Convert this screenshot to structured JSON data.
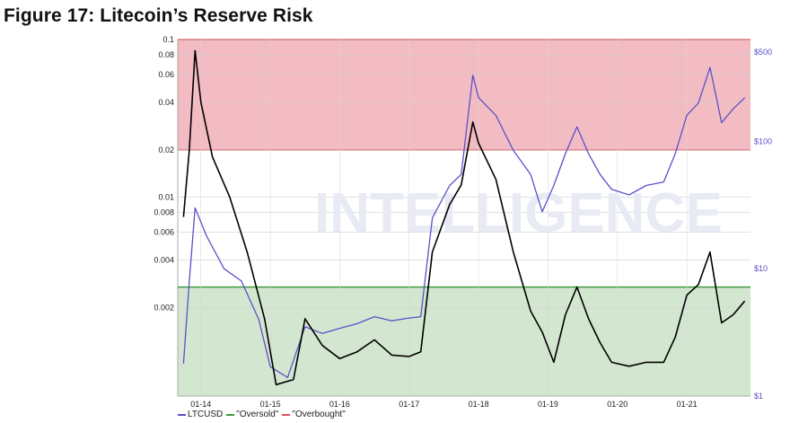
{
  "figure_title": "Figure 17: Litecoin’s Reserve Risk",
  "watermark": "INTELLIGENCE",
  "colors": {
    "ltcusd": "#5b50c8",
    "reserve_risk": "#000000",
    "oversold": "#3e9b3e",
    "overbought": "#e0505c",
    "oversold_fill": "#d3e7d0",
    "overbought_fill": "#f3bcc2"
  },
  "chart_data": {
    "type": "line",
    "title": "",
    "left_axis": {
      "scale": "log",
      "range": [
        0.00055,
        0.1
      ],
      "ticks": [
        0.1,
        0.08,
        0.06,
        0.04,
        0.02,
        0.01,
        0.008,
        0.006,
        0.004,
        0.002
      ],
      "tick_labels": [
        "0.1",
        "0.08",
        "0.06",
        "0.04",
        "0.02",
        "0.01",
        "0.008",
        "0.006",
        "0.004",
        "0.002"
      ]
    },
    "right_axis": {
      "scale": "log",
      "range": [
        1,
        630
      ],
      "ticks": [
        500,
        100,
        10,
        1
      ],
      "tick_labels": [
        "$500",
        "$100",
        "$10",
        "$1"
      ]
    },
    "x_axis": {
      "range": [
        "2013-09",
        "2021-12"
      ],
      "ticks": [
        "2014-01",
        "2015-01",
        "2016-01",
        "2017-01",
        "2018-01",
        "2019-01",
        "2020-01",
        "2021-01"
      ],
      "tick_labels": [
        "01-14",
        "01-15",
        "01-16",
        "01-17",
        "01-18",
        "01-19",
        "01-20",
        "01-21"
      ]
    },
    "bands": {
      "overbought": {
        "from": 0.02,
        "to": 0.1
      },
      "oversold": {
        "from": 0.00055,
        "to": 0.0027
      }
    },
    "legend": [
      "LTCUSD",
      "\"Oversold\"",
      "\"Overbought\""
    ],
    "series": [
      {
        "name": "LTCUSD",
        "axis": "right",
        "points": [
          [
            "2013-10",
            1.8
          ],
          [
            "2013-11",
            8
          ],
          [
            "2013-12",
            30
          ],
          [
            "2014-02",
            18
          ],
          [
            "2014-05",
            10
          ],
          [
            "2014-08",
            8
          ],
          [
            "2014-11",
            4
          ],
          [
            "2015-01",
            1.7
          ],
          [
            "2015-04",
            1.4
          ],
          [
            "2015-07",
            3.5
          ],
          [
            "2015-10",
            3.1
          ],
          [
            "2016-01",
            3.4
          ],
          [
            "2016-04",
            3.7
          ],
          [
            "2016-07",
            4.2
          ],
          [
            "2016-10",
            3.9
          ],
          [
            "2017-01",
            4.1
          ],
          [
            "2017-03",
            4.2
          ],
          [
            "2017-05",
            25
          ],
          [
            "2017-08",
            45
          ],
          [
            "2017-10",
            55
          ],
          [
            "2017-12",
            330
          ],
          [
            "2018-01",
            220
          ],
          [
            "2018-04",
            160
          ],
          [
            "2018-07",
            85
          ],
          [
            "2018-10",
            55
          ],
          [
            "2018-12",
            28
          ],
          [
            "2019-02",
            45
          ],
          [
            "2019-04",
            80
          ],
          [
            "2019-06",
            130
          ],
          [
            "2019-08",
            80
          ],
          [
            "2019-10",
            55
          ],
          [
            "2019-12",
            42
          ],
          [
            "2020-03",
            38
          ],
          [
            "2020-06",
            45
          ],
          [
            "2020-09",
            48
          ],
          [
            "2020-11",
            80
          ],
          [
            "2021-01",
            160
          ],
          [
            "2021-03",
            200
          ],
          [
            "2021-05",
            380
          ],
          [
            "2021-07",
            140
          ],
          [
            "2021-09",
            180
          ],
          [
            "2021-11",
            220
          ]
        ]
      },
      {
        "name": "Reserve Risk",
        "points": [
          [
            "2013-10",
            0.0075
          ],
          [
            "2013-11",
            0.02
          ],
          [
            "2013-12",
            0.085
          ],
          [
            "2014-01",
            0.04
          ],
          [
            "2014-03",
            0.018
          ],
          [
            "2014-06",
            0.01
          ],
          [
            "2014-09",
            0.0045
          ],
          [
            "2014-12",
            0.0017
          ],
          [
            "2015-02",
            0.00065
          ],
          [
            "2015-05",
            0.0007
          ],
          [
            "2015-07",
            0.0017
          ],
          [
            "2015-10",
            0.00115
          ],
          [
            "2016-01",
            0.00095
          ],
          [
            "2016-04",
            0.00105
          ],
          [
            "2016-07",
            0.00125
          ],
          [
            "2016-10",
            0.001
          ],
          [
            "2017-01",
            0.00098
          ],
          [
            "2017-03",
            0.00105
          ],
          [
            "2017-05",
            0.0045
          ],
          [
            "2017-08",
            0.009
          ],
          [
            "2017-10",
            0.012
          ],
          [
            "2017-12",
            0.03
          ],
          [
            "2018-01",
            0.022
          ],
          [
            "2018-04",
            0.013
          ],
          [
            "2018-07",
            0.0045
          ],
          [
            "2018-10",
            0.0019
          ],
          [
            "2018-12",
            0.0014
          ],
          [
            "2019-02",
            0.0009
          ],
          [
            "2019-04",
            0.0018
          ],
          [
            "2019-06",
            0.0027
          ],
          [
            "2019-08",
            0.0017
          ],
          [
            "2019-10",
            0.0012
          ],
          [
            "2019-12",
            0.0009
          ],
          [
            "2020-03",
            0.00085
          ],
          [
            "2020-06",
            0.0009
          ],
          [
            "2020-09",
            0.0009
          ],
          [
            "2020-11",
            0.0013
          ],
          [
            "2021-01",
            0.0024
          ],
          [
            "2021-03",
            0.0028
          ],
          [
            "2021-05",
            0.0045
          ],
          [
            "2021-07",
            0.0016
          ],
          [
            "2021-09",
            0.0018
          ],
          [
            "2021-11",
            0.0022
          ]
        ]
      }
    ]
  }
}
